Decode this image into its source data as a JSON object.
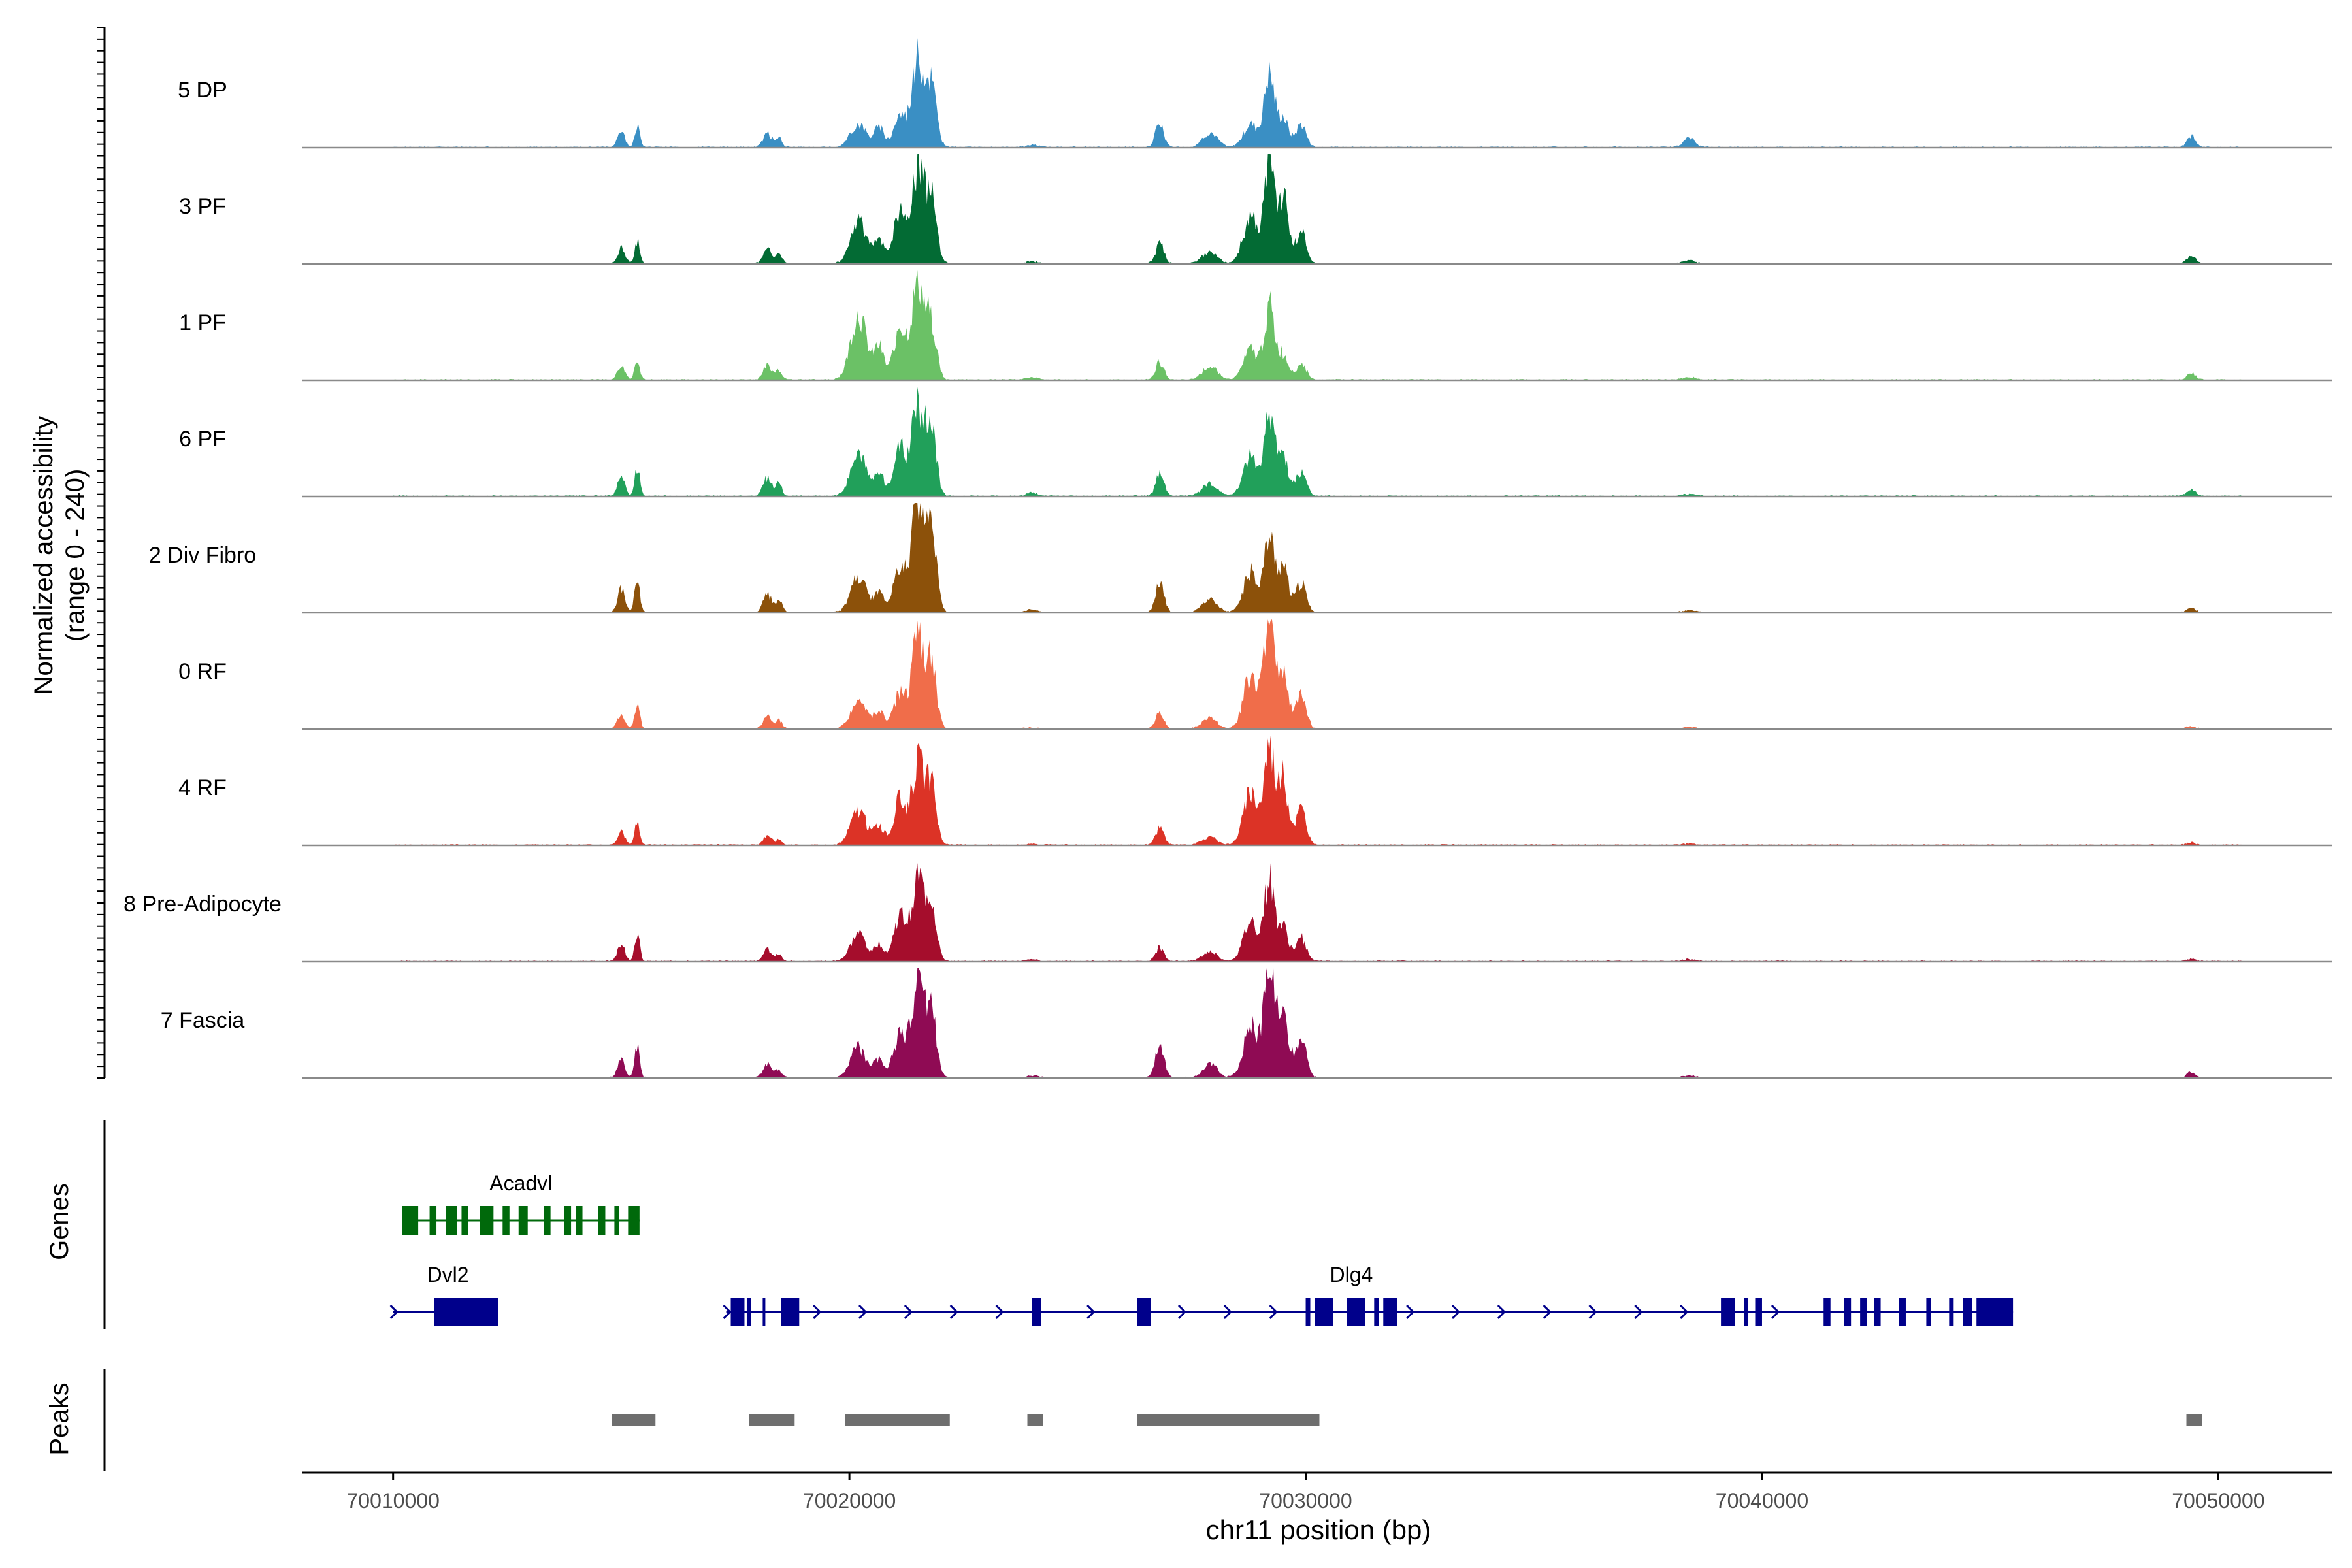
{
  "chart_data": {
    "type": "coverage-track",
    "region": {
      "chromosome": "chr11",
      "start": 70008000,
      "end": 70052500
    },
    "xlabel": "chr11 position (bp)",
    "x_ticks": [
      70010000,
      70020000,
      70030000,
      70040000,
      70050000
    ],
    "x_tick_labels": [
      "70010000",
      "70020000",
      "70030000",
      "70040000",
      "70050000"
    ],
    "ylabel_line1": "Normalized accessibility",
    "ylabel_line2": "(range 0 - 240)",
    "y_range": [
      0,
      240
    ],
    "peak_shape": [
      [
        70015000,
        0.14,
        80
      ],
      [
        70015350,
        0.2,
        55
      ],
      [
        70018200,
        0.13,
        90
      ],
      [
        70018450,
        0.09,
        70
      ],
      [
        70020200,
        0.35,
        170
      ],
      [
        70020650,
        0.22,
        110
      ],
      [
        70021100,
        0.4,
        130
      ],
      [
        70021500,
        0.62,
        140
      ],
      [
        70021800,
        0.5,
        110
      ],
      [
        70024000,
        0.05,
        120
      ],
      [
        70026800,
        0.2,
        90
      ],
      [
        70027900,
        0.12,
        160
      ],
      [
        70028800,
        0.3,
        160
      ],
      [
        70029200,
        0.55,
        110
      ],
      [
        70029500,
        0.38,
        120
      ],
      [
        70029900,
        0.3,
        110
      ],
      [
        70038400,
        0.06,
        130
      ],
      [
        70049400,
        0.08,
        90
      ]
    ],
    "series": [
      {
        "name": "5 DP",
        "color": "#3A8FC4",
        "peak_scale": [
          1.0,
          1.0,
          1.0,
          1.0,
          0.6,
          0.8,
          0.7,
          1.3,
          1.1,
          0.4,
          1.1,
          1.1,
          0.7,
          1.2,
          0.7,
          0.7,
          1.3,
          1.3
        ]
      },
      {
        "name": "3 PF",
        "color": "#036B34",
        "peak_scale": [
          1.0,
          1.0,
          1.0,
          1.0,
          1.1,
          1.0,
          1.2,
          1.4,
          1.2,
          0.4,
          0.9,
          0.9,
          1.5,
          1.6,
          1.6,
          1.0,
          0.5,
          0.9
        ]
      },
      {
        "name": "1 PF",
        "color": "#6BC166",
        "peak_scale": [
          0.9,
          1.0,
          1.0,
          1.0,
          1.7,
          1.3,
          1.2,
          1.4,
          1.0,
          0.5,
          0.8,
          1.0,
          0.9,
          1.2,
          0.6,
          0.5,
          0.4,
          0.8
        ]
      },
      {
        "name": "6 PF",
        "color": "#21A05A",
        "peak_scale": [
          1.2,
          1.3,
          1.3,
          1.2,
          1.1,
          1.0,
          1.1,
          1.3,
          1.2,
          0.6,
          1.0,
          1.0,
          1.2,
          1.3,
          0.9,
          0.7,
          0.3,
          0.8
        ]
      },
      {
        "name": "2 Div Fibro",
        "color": "#8C510A",
        "peak_scale": [
          1.5,
          1.6,
          1.3,
          1.3,
          0.9,
          0.8,
          1.0,
          1.6,
          1.4,
          0.5,
          1.3,
          1.0,
          1.2,
          1.2,
          1.1,
          0.9,
          0.3,
          0.5
        ]
      },
      {
        "name": "0 RF",
        "color": "#F06D4A",
        "peak_scale": [
          0.9,
          1.2,
          0.9,
          0.9,
          0.7,
          0.7,
          0.8,
          1.3,
          1.1,
          0.2,
          0.7,
          0.8,
          1.6,
          1.7,
          1.3,
          1.0,
          0.2,
          0.3
        ]
      },
      {
        "name": "4 RF",
        "color": "#DC3326",
        "peak_scale": [
          0.8,
          1.1,
          0.6,
          0.5,
          0.9,
          0.8,
          1.0,
          1.2,
          1.0,
          0.2,
          0.8,
          0.6,
          1.6,
          1.6,
          1.6,
          1.1,
          0.2,
          0.3
        ]
      },
      {
        "name": "8 Pre-Adipocyte",
        "color": "#A50D2C",
        "peak_scale": [
          1.1,
          1.2,
          0.8,
          0.8,
          0.7,
          0.7,
          1.0,
          1.2,
          1.0,
          0.4,
          0.6,
          0.7,
          1.2,
          1.3,
          0.8,
          0.7,
          0.3,
          0.3
        ]
      },
      {
        "name": "7 Fascia",
        "color": "#8F0B54",
        "peak_scale": [
          1.1,
          1.4,
          0.9,
          0.7,
          0.8,
          0.8,
          1.0,
          1.4,
          1.2,
          0.4,
          1.6,
          1.0,
          1.6,
          1.9,
          1.7,
          1.2,
          0.3,
          0.6
        ]
      }
    ],
    "genes_label": "Genes",
    "genes": [
      {
        "name": "Acadvl",
        "color": "#00690B",
        "start": 70010200,
        "end": 70015400,
        "strand": "",
        "exons": [
          [
            70010200,
            70010550
          ],
          [
            70010800,
            70010950
          ],
          [
            70011150,
            70011400
          ],
          [
            70011500,
            70011650
          ],
          [
            70011900,
            70012200
          ],
          [
            70012400,
            70012550
          ],
          [
            70012750,
            70012950
          ],
          [
            70013300,
            70013450
          ],
          [
            70013750,
            70013900
          ],
          [
            70014000,
            70014150
          ],
          [
            70014500,
            70014650
          ],
          [
            70014850,
            70014950
          ],
          [
            70015150,
            70015400
          ]
        ]
      },
      {
        "name": "Dvl2",
        "color": "#00008B",
        "start": 70010000,
        "end": 70012300,
        "strand": "+",
        "exons": [
          [
            70010900,
            70012300
          ]
        ]
      },
      {
        "name": "Dlg4",
        "color": "#00008B",
        "start": 70017300,
        "end": 70045500,
        "strand": "+",
        "exons": [
          [
            70017400,
            70017700
          ],
          [
            70017750,
            70017850
          ],
          [
            70018100,
            70018150
          ],
          [
            70018500,
            70018900
          ],
          [
            70024000,
            70024200
          ],
          [
            70026300,
            70026600
          ],
          [
            70030000,
            70030100
          ],
          [
            70030200,
            70030600
          ],
          [
            70030900,
            70031300
          ],
          [
            70031500,
            70031600
          ],
          [
            70031700,
            70032000
          ],
          [
            70039100,
            70039400
          ],
          [
            70039600,
            70039700
          ],
          [
            70039850,
            70040000
          ],
          [
            70041350,
            70041500
          ],
          [
            70041800,
            70041950
          ],
          [
            70042150,
            70042300
          ],
          [
            70042450,
            70042600
          ],
          [
            70043000,
            70043150
          ],
          [
            70043600,
            70043700
          ],
          [
            70044100,
            70044200
          ],
          [
            70044400,
            70044600
          ],
          [
            70044700,
            70045500
          ]
        ]
      }
    ],
    "peaks_label": "Peaks",
    "peaks": [
      [
        70014800,
        70015750
      ],
      [
        70017800,
        70018800
      ],
      [
        70019900,
        70022200
      ],
      [
        70023900,
        70024250
      ],
      [
        70026300,
        70030300
      ],
      [
        70049300,
        70049650
      ]
    ]
  }
}
